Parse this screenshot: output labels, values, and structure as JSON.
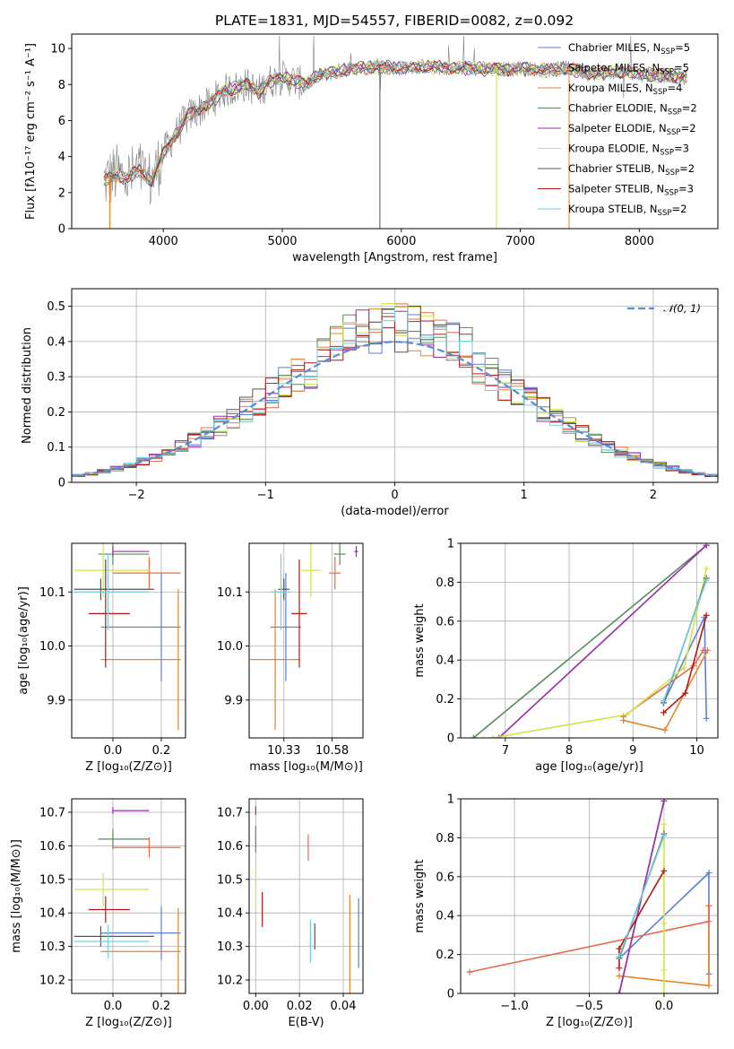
{
  "chart_data": [
    {
      "id": "spectrum",
      "type": "line",
      "title": "PLATE=1831, MJD=54557, FIBERID=0082, z=0.092",
      "xlabel": "wavelength [Angstrom, rest frame]",
      "ylabel": "Flux [fλ10⁻¹⁷ erg cm⁻² s⁻¹ A⁻¹]",
      "xlim": [
        3230,
        8660
      ],
      "ylim": [
        0,
        10.8
      ],
      "xticks": [
        4000,
        5000,
        6000,
        7000,
        8000
      ],
      "yticks": [
        0,
        2,
        4,
        6,
        8,
        10
      ],
      "grid": false,
      "legend": "right",
      "data_color": "#808080",
      "data": {
        "x": [
          3500,
          3600,
          3700,
          3800,
          3900,
          4000,
          4100,
          4200,
          4300,
          4400,
          4500,
          4600,
          4700,
          4800,
          4900,
          5000,
          5100,
          5200,
          5300,
          5400,
          5500,
          5600,
          5800,
          6000,
          6200,
          6400,
          6600,
          6800,
          7000,
          7200,
          7400,
          7600,
          7800,
          8000,
          8200,
          8400
        ],
        "y": [
          2.6,
          3.0,
          2.8,
          3.2,
          2.6,
          4.2,
          5.2,
          6.2,
          6.6,
          7.0,
          7.6,
          7.8,
          8.0,
          7.6,
          8.2,
          8.4,
          8.2,
          8.0,
          8.5,
          8.6,
          8.8,
          8.9,
          9.0,
          8.9,
          9.0,
          8.9,
          8.9,
          8.8,
          8.9,
          8.8,
          8.9,
          8.6,
          8.7,
          8.6,
          8.5,
          8.4
        ]
      },
      "series": [
        {
          "label": "Chabrier MILES, N",
          "sub": "SSP",
          "eq": "=5",
          "color": "#5b7fd6"
        },
        {
          "label": "Salpeter MILES, N",
          "sub": "SSP",
          "eq": "=5",
          "color": "#e8694a"
        },
        {
          "label": "Kroupa MILES, N",
          "sub": "SSP",
          "eq": "=4",
          "color": "#e7832b"
        },
        {
          "label": "Chabrier ELODIE, N",
          "sub": "SSP",
          "eq": "=2",
          "color": "#5a8a5e"
        },
        {
          "label": "Salpeter ELODIE, N",
          "sub": "SSP",
          "eq": "=2",
          "color": "#9b2ea8"
        },
        {
          "label": "Kroupa ELODIE, N",
          "sub": "SSP",
          "eq": "=3",
          "color": "#d0e545"
        },
        {
          "label": "Chabrier STELIB, N",
          "sub": "SSP",
          "eq": "=2",
          "color": "#555555"
        },
        {
          "label": "Salpeter STELIB, N",
          "sub": "SSP",
          "eq": "=3",
          "color": "#b01818"
        },
        {
          "label": "Kroupa STELIB, N",
          "sub": "SSP",
          "eq": "=2",
          "color": "#72d0dc"
        }
      ]
    },
    {
      "id": "residuals",
      "type": "line",
      "xlabel": "(data-model)/error",
      "ylabel": "Normed distribution",
      "xlim": [
        -2.5,
        2.5
      ],
      "ylim": [
        0,
        0.55
      ],
      "xticks": [
        -2,
        -1,
        0,
        1,
        2
      ],
      "xticklabels": [
        "−2",
        "−1",
        "0",
        "1",
        "2"
      ],
      "yticks": [
        0,
        0.1,
        0.2,
        0.3,
        0.4,
        0.5
      ],
      "grid": true,
      "legend": "top-right",
      "gaussian_label": "𝒩(0, 1)",
      "gaussian_color": "#5b8ad8",
      "bin_width": 0.1
    },
    {
      "id": "age-vs-Z",
      "type": "scatter",
      "xlabel": "Z [log₁₀(Z/Z⊙)]",
      "ylabel": "age  [log₁₀(age/yr)]",
      "xlim": [
        -0.17,
        0.3
      ],
      "ylim": [
        9.83,
        10.19
      ],
      "xticks": [
        0.0,
        0.2
      ],
      "xticklabels": [
        "0.0",
        "0.2"
      ],
      "yticks": [
        9.9,
        10.0,
        10.1
      ],
      "yticklabels": [
        "9.9",
        "10.0",
        "10.1"
      ],
      "grid": true
    },
    {
      "id": "age-vs-mass",
      "type": "scatter",
      "xlabel": "mass [log₁₀(M/M⊙)]",
      "xlim": [
        10.15,
        10.74
      ],
      "ylim": [
        9.83,
        10.19
      ],
      "xticks": [
        10.33,
        10.58
      ],
      "xticklabels": [
        "10.33",
        "10.58"
      ],
      "yticks": [
        9.9,
        10.0,
        10.1
      ],
      "yticklabels": [
        "9.9",
        "10.0",
        "10.1"
      ],
      "grid": true
    },
    {
      "id": "weight-vs-age",
      "type": "line",
      "xlabel": "age  [log₁₀(age/yr)]",
      "ylabel": "mass weight",
      "xlim": [
        6.3,
        10.33
      ],
      "ylim": [
        0,
        1
      ],
      "xticks": [
        7,
        8,
        9,
        10
      ],
      "yticks": [
        0,
        0.2,
        0.4,
        0.6,
        0.8,
        1.0
      ],
      "grid": true
    },
    {
      "id": "mass-vs-Z",
      "type": "scatter",
      "xlabel": "Z [log₁₀(Z/Z⊙)]",
      "ylabel": "mass [log₁₀(M/M⊙)]",
      "xlim": [
        -0.17,
        0.3
      ],
      "ylim": [
        10.16,
        10.74
      ],
      "xticks": [
        0.0,
        0.2
      ],
      "xticklabels": [
        "0.0",
        "0.2"
      ],
      "yticks": [
        10.2,
        10.3,
        10.4,
        10.5,
        10.6,
        10.7
      ],
      "grid": true
    },
    {
      "id": "mass-vs-ebv",
      "type": "scatter",
      "xlabel": "E(B-V)",
      "xlim": [
        -0.003,
        0.049
      ],
      "ylim": [
        10.16,
        10.74
      ],
      "xticks": [
        0.0,
        0.02,
        0.04
      ],
      "xticklabels": [
        "0.00",
        "0.02",
        "0.04"
      ],
      "yticks": [
        10.2,
        10.3,
        10.4,
        10.5,
        10.6,
        10.7
      ],
      "grid": true
    },
    {
      "id": "weight-vs-Z",
      "type": "line",
      "xlabel": "Z [log₁₀(Z/Z⊙)]",
      "ylabel": "mass weight",
      "xlim": [
        -1.36,
        0.36
      ],
      "ylim": [
        0,
        1
      ],
      "xticks": [
        -1.0,
        -0.5,
        0.0
      ],
      "xticklabels": [
        "−1.0",
        "−0.5",
        "0.0"
      ],
      "yticks": [
        0,
        0.2,
        0.4,
        0.6,
        0.8,
        1.0
      ],
      "grid": true
    }
  ],
  "fits": [
    {
      "color": "#5b7fd6",
      "Z": 0.2,
      "Zlo": -0.05,
      "Zhi": 0.28,
      "age": 10.035,
      "ageErr": 0.1,
      "mass": 10.34,
      "massErr": 0.08,
      "ebv": 0.047,
      "ssp": [
        [
          9.48,
          -0.3,
          0.18
        ],
        [
          10.12,
          0.3,
          0.62
        ],
        [
          10.15,
          0.3,
          0.1
        ]
      ]
    },
    {
      "color": "#e7832b",
      "Z": 0.27,
      "Zlo": -0.05,
      "Zhi": 0.28,
      "age": 9.975,
      "ageErr": 0.13,
      "mass": 10.285,
      "massErr": 0.13,
      "ebv": 0.043,
      "ssp": [
        [
          8.85,
          -0.3,
          0.09
        ],
        [
          9.5,
          0.3,
          0.04
        ],
        [
          10.17,
          0.3,
          0.45
        ]
      ]
    },
    {
      "color": "#e8694a",
      "Z": 0.15,
      "Zlo": 0.0,
      "Zhi": 0.28,
      "age": 10.135,
      "ageErr": 0.03,
      "mass": 10.595,
      "massErr": 0.03,
      "ebv": 0.024,
      "ssp": [
        [
          8.85,
          -1.3,
          0.11
        ],
        [
          9.95,
          0.3,
          0.37
        ],
        [
          10.1,
          0.3,
          0.45
        ]
      ]
    },
    {
      "color": "#5a8a5e",
      "Z": 0.0,
      "Zlo": -0.06,
      "Zhi": 0.15,
      "age": 10.17,
      "ageErr": 0.02,
      "mass": 10.62,
      "massErr": 0.03,
      "ebv": 0.0,
      "ssp": [
        [
          6.5,
          -0.3,
          0.0
        ],
        [
          10.15,
          0.0,
          0.99
        ]
      ]
    },
    {
      "color": "#9b2ea8",
      "Z": 0.0,
      "Zlo": 0.0,
      "Zhi": 0.15,
      "age": 10.175,
      "ageErr": 0.01,
      "mass": 10.705,
      "massErr": 0.01,
      "ebv": 0.0,
      "ssp": [
        [
          6.9,
          -0.3,
          0.0
        ],
        [
          10.15,
          0.0,
          0.99
        ]
      ]
    },
    {
      "color": "#d0e545",
      "Z": -0.04,
      "Zlo": -0.16,
      "Zhi": 0.15,
      "age": 10.14,
      "ageErr": 0.05,
      "mass": 10.47,
      "massErr": 0.05,
      "ebv": 0.0,
      "ssp": [
        [
          6.8,
          0.0,
          0.0
        ],
        [
          8.9,
          0.0,
          0.12
        ],
        [
          9.8,
          0.0,
          0.36
        ],
        [
          10.15,
          0.0,
          0.87
        ]
      ]
    },
    {
      "color": "#555555",
      "Z": -0.05,
      "Zlo": -0.16,
      "Zhi": 0.17,
      "age": 10.105,
      "ageErr": 0.02,
      "mass": 10.33,
      "massErr": 0.03,
      "ebv": 0.027,
      "ssp": [
        [
          9.48,
          -0.3,
          0.18
        ],
        [
          10.15,
          0.0,
          0.82
        ]
      ]
    },
    {
      "color": "#b01818",
      "Z": -0.03,
      "Zlo": -0.1,
      "Zhi": 0.07,
      "age": 10.06,
      "ageErr": 0.1,
      "mass": 10.41,
      "massErr": 0.04,
      "ebv": 0.003,
      "ssp": [
        [
          9.48,
          -0.3,
          0.13
        ],
        [
          9.82,
          -0.3,
          0.23
        ],
        [
          10.15,
          0.0,
          0.63
        ]
      ]
    },
    {
      "color": "#72d0dc",
      "Z": -0.02,
      "Zlo": -0.16,
      "Zhi": 0.15,
      "age": 10.1,
      "ageErr": 0.07,
      "mass": 10.315,
      "massErr": 0.05,
      "ebv": 0.025,
      "ssp": [
        [
          9.48,
          -0.3,
          0.19
        ],
        [
          10.15,
          0.0,
          0.81
        ]
      ]
    }
  ]
}
